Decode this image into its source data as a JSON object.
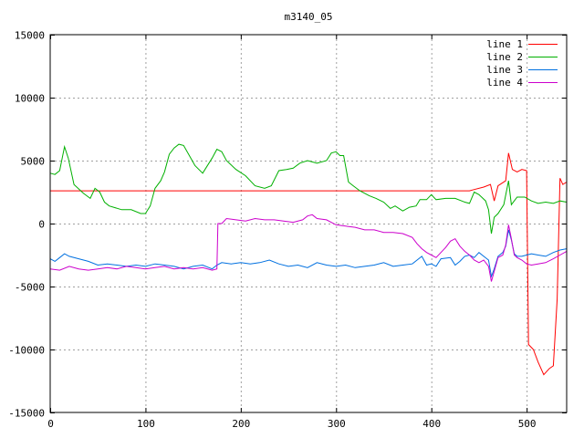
{
  "chart_data": {
    "type": "line",
    "title": "m3140_05",
    "xlabel": "",
    "ylabel": "",
    "xlim": [
      0,
      542
    ],
    "ylim": [
      -15000,
      15000
    ],
    "x_ticks": [
      0,
      100,
      200,
      300,
      400,
      500
    ],
    "x_tick_labels": [
      "0",
      "100",
      "200",
      "300",
      "400",
      "500"
    ],
    "y_ticks": [
      15000,
      10000,
      5000,
      0,
      -5000,
      -10000,
      -15000
    ],
    "y_tick_labels": [
      "15000",
      "10000",
      "5000",
      "0",
      "-5000",
      "-10000",
      "-15000"
    ],
    "grid": true,
    "legend_position": "top-right",
    "series": [
      {
        "name": "line 1",
        "color": "#ff0000",
        "points": [
          [
            0,
            2600
          ],
          [
            440,
            2600
          ],
          [
            445,
            2700
          ],
          [
            455,
            2900
          ],
          [
            462,
            3100
          ],
          [
            466,
            1800
          ],
          [
            470,
            3000
          ],
          [
            478,
            3400
          ],
          [
            481,
            5600
          ],
          [
            485,
            4300
          ],
          [
            490,
            4100
          ],
          [
            495,
            4300
          ],
          [
            500,
            4200
          ],
          [
            502,
            -9600
          ],
          [
            507,
            -10000
          ],
          [
            512,
            -11000
          ],
          [
            518,
            -12000
          ],
          [
            524,
            -11500
          ],
          [
            528,
            -11300
          ],
          [
            532,
            -6000
          ],
          [
            535,
            3600
          ],
          [
            538,
            3100
          ],
          [
            542,
            3300
          ]
        ]
      },
      {
        "name": "line 2",
        "color": "#00b000",
        "points": [
          [
            0,
            4000
          ],
          [
            5,
            3900
          ],
          [
            10,
            4200
          ],
          [
            15,
            6100
          ],
          [
            19,
            5200
          ],
          [
            25,
            3100
          ],
          [
            35,
            2400
          ],
          [
            42,
            2000
          ],
          [
            47,
            2800
          ],
          [
            52,
            2500
          ],
          [
            57,
            1700
          ],
          [
            62,
            1400
          ],
          [
            75,
            1100
          ],
          [
            85,
            1100
          ],
          [
            95,
            800
          ],
          [
            100,
            800
          ],
          [
            105,
            1400
          ],
          [
            110,
            2800
          ],
          [
            116,
            3400
          ],
          [
            120,
            4100
          ],
          [
            125,
            5500
          ],
          [
            130,
            6000
          ],
          [
            135,
            6300
          ],
          [
            140,
            6200
          ],
          [
            146,
            5400
          ],
          [
            152,
            4600
          ],
          [
            160,
            4000
          ],
          [
            170,
            5200
          ],
          [
            175,
            5900
          ],
          [
            180,
            5700
          ],
          [
            185,
            5000
          ],
          [
            195,
            4300
          ],
          [
            205,
            3800
          ],
          [
            215,
            3000
          ],
          [
            225,
            2800
          ],
          [
            232,
            3000
          ],
          [
            240,
            4200
          ],
          [
            248,
            4300
          ],
          [
            255,
            4400
          ],
          [
            262,
            4800
          ],
          [
            270,
            5000
          ],
          [
            280,
            4800
          ],
          [
            290,
            5000
          ],
          [
            295,
            5600
          ],
          [
            300,
            5700
          ],
          [
            304,
            5400
          ],
          [
            308,
            5400
          ],
          [
            313,
            3300
          ],
          [
            318,
            3000
          ],
          [
            325,
            2600
          ],
          [
            335,
            2200
          ],
          [
            342,
            2000
          ],
          [
            350,
            1700
          ],
          [
            357,
            1200
          ],
          [
            362,
            1400
          ],
          [
            370,
            1000
          ],
          [
            377,
            1300
          ],
          [
            384,
            1400
          ],
          [
            388,
            1900
          ],
          [
            395,
            1900
          ],
          [
            400,
            2300
          ],
          [
            405,
            1900
          ],
          [
            415,
            2000
          ],
          [
            425,
            2000
          ],
          [
            435,
            1700
          ],
          [
            440,
            1600
          ],
          [
            445,
            2500
          ],
          [
            450,
            2300
          ],
          [
            457,
            1800
          ],
          [
            460,
            1100
          ],
          [
            463,
            -800
          ],
          [
            466,
            500
          ],
          [
            470,
            800
          ],
          [
            476,
            1500
          ],
          [
            481,
            3400
          ],
          [
            484,
            1500
          ],
          [
            490,
            2100
          ],
          [
            498,
            2100
          ],
          [
            505,
            1800
          ],
          [
            512,
            1600
          ],
          [
            520,
            1700
          ],
          [
            528,
            1600
          ],
          [
            535,
            1800
          ],
          [
            542,
            1700
          ]
        ]
      },
      {
        "name": "line 3",
        "color": "#0070e0",
        "points": [
          [
            0,
            -2800
          ],
          [
            5,
            -3000
          ],
          [
            10,
            -2700
          ],
          [
            15,
            -2400
          ],
          [
            20,
            -2600
          ],
          [
            30,
            -2800
          ],
          [
            40,
            -3000
          ],
          [
            50,
            -3300
          ],
          [
            60,
            -3200
          ],
          [
            70,
            -3300
          ],
          [
            80,
            -3400
          ],
          [
            90,
            -3300
          ],
          [
            100,
            -3400
          ],
          [
            110,
            -3200
          ],
          [
            120,
            -3300
          ],
          [
            130,
            -3400
          ],
          [
            140,
            -3600
          ],
          [
            150,
            -3400
          ],
          [
            160,
            -3300
          ],
          [
            170,
            -3600
          ],
          [
            175,
            -3300
          ],
          [
            180,
            -3100
          ],
          [
            190,
            -3200
          ],
          [
            200,
            -3100
          ],
          [
            210,
            -3200
          ],
          [
            220,
            -3100
          ],
          [
            230,
            -2900
          ],
          [
            240,
            -3200
          ],
          [
            250,
            -3400
          ],
          [
            260,
            -3300
          ],
          [
            270,
            -3500
          ],
          [
            280,
            -3100
          ],
          [
            290,
            -3300
          ],
          [
            300,
            -3400
          ],
          [
            310,
            -3300
          ],
          [
            320,
            -3500
          ],
          [
            330,
            -3400
          ],
          [
            340,
            -3300
          ],
          [
            350,
            -3100
          ],
          [
            360,
            -3400
          ],
          [
            370,
            -3300
          ],
          [
            380,
            -3200
          ],
          [
            390,
            -2600
          ],
          [
            395,
            -3300
          ],
          [
            400,
            -3200
          ],
          [
            405,
            -3400
          ],
          [
            410,
            -2800
          ],
          [
            420,
            -2700
          ],
          [
            425,
            -3300
          ],
          [
            430,
            -3000
          ],
          [
            435,
            -2600
          ],
          [
            440,
            -2500
          ],
          [
            445,
            -2700
          ],
          [
            450,
            -2300
          ],
          [
            455,
            -2600
          ],
          [
            460,
            -2900
          ],
          [
            463,
            -4200
          ],
          [
            466,
            -3600
          ],
          [
            470,
            -2600
          ],
          [
            475,
            -2300
          ],
          [
            478,
            -1800
          ],
          [
            481,
            -500
          ],
          [
            484,
            -1300
          ],
          [
            487,
            -2400
          ],
          [
            490,
            -2600
          ],
          [
            495,
            -2600
          ],
          [
            500,
            -2500
          ],
          [
            505,
            -2400
          ],
          [
            512,
            -2500
          ],
          [
            520,
            -2600
          ],
          [
            528,
            -2300
          ],
          [
            535,
            -2100
          ],
          [
            542,
            -2000
          ]
        ]
      },
      {
        "name": "line 4",
        "color": "#cc00cc",
        "points": [
          [
            0,
            -3600
          ],
          [
            10,
            -3700
          ],
          [
            20,
            -3400
          ],
          [
            30,
            -3600
          ],
          [
            40,
            -3700
          ],
          [
            50,
            -3600
          ],
          [
            60,
            -3500
          ],
          [
            70,
            -3600
          ],
          [
            80,
            -3400
          ],
          [
            90,
            -3500
          ],
          [
            100,
            -3600
          ],
          [
            110,
            -3500
          ],
          [
            120,
            -3400
          ],
          [
            130,
            -3600
          ],
          [
            140,
            -3500
          ],
          [
            150,
            -3600
          ],
          [
            160,
            -3500
          ],
          [
            170,
            -3700
          ],
          [
            175,
            -3600
          ],
          [
            176,
            0
          ],
          [
            180,
            0
          ],
          [
            185,
            400
          ],
          [
            195,
            300
          ],
          [
            205,
            200
          ],
          [
            215,
            400
          ],
          [
            225,
            300
          ],
          [
            235,
            300
          ],
          [
            245,
            200
          ],
          [
            255,
            100
          ],
          [
            265,
            300
          ],
          [
            270,
            600
          ],
          [
            275,
            700
          ],
          [
            280,
            400
          ],
          [
            290,
            300
          ],
          [
            300,
            -100
          ],
          [
            310,
            -200
          ],
          [
            320,
            -300
          ],
          [
            330,
            -500
          ],
          [
            340,
            -500
          ],
          [
            350,
            -700
          ],
          [
            360,
            -700
          ],
          [
            370,
            -800
          ],
          [
            380,
            -1100
          ],
          [
            385,
            -1600
          ],
          [
            390,
            -2000
          ],
          [
            395,
            -2300
          ],
          [
            400,
            -2500
          ],
          [
            405,
            -2700
          ],
          [
            410,
            -2300
          ],
          [
            415,
            -1900
          ],
          [
            420,
            -1400
          ],
          [
            425,
            -1200
          ],
          [
            430,
            -1800
          ],
          [
            435,
            -2200
          ],
          [
            440,
            -2500
          ],
          [
            445,
            -2900
          ],
          [
            450,
            -3100
          ],
          [
            455,
            -2900
          ],
          [
            460,
            -3400
          ],
          [
            463,
            -4600
          ],
          [
            466,
            -3800
          ],
          [
            470,
            -2700
          ],
          [
            475,
            -2500
          ],
          [
            478,
            -1700
          ],
          [
            481,
            -100
          ],
          [
            484,
            -1200
          ],
          [
            487,
            -2500
          ],
          [
            490,
            -2700
          ],
          [
            495,
            -2900
          ],
          [
            500,
            -3200
          ],
          [
            505,
            -3300
          ],
          [
            512,
            -3200
          ],
          [
            520,
            -3100
          ],
          [
            528,
            -2800
          ],
          [
            535,
            -2500
          ],
          [
            542,
            -2200
          ]
        ]
      }
    ]
  }
}
